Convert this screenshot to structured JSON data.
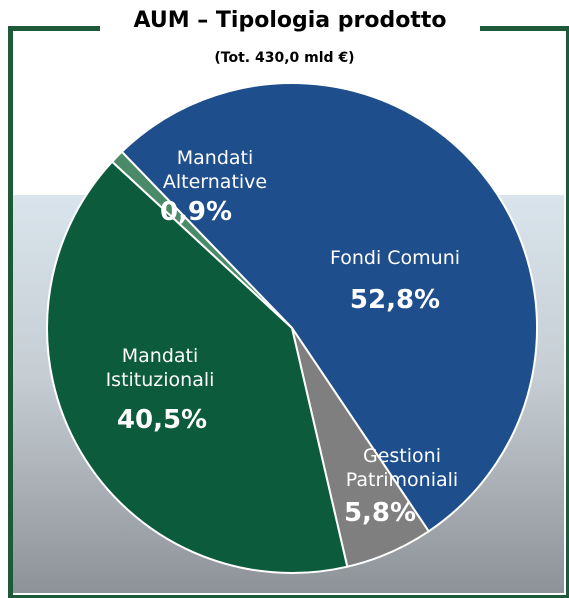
{
  "chart_data": {
    "type": "pie",
    "title": "AUM – Tipologia prodotto",
    "subtitle": "(Tot. 430,0 mld €)",
    "categories": [
      "Fondi Comuni",
      "Gestioni Patrimoniali",
      "Mandati Istituzionali",
      "Mandati Alternative"
    ],
    "values": [
      52.8,
      5.8,
      40.5,
      0.9
    ],
    "value_labels": [
      "52,8%",
      "5,8%",
      "40,5%",
      "0,9%"
    ],
    "colors": [
      "#1f4e8c",
      "#7f7f7f",
      "#0b5b3c",
      "#4b8a68"
    ]
  }
}
